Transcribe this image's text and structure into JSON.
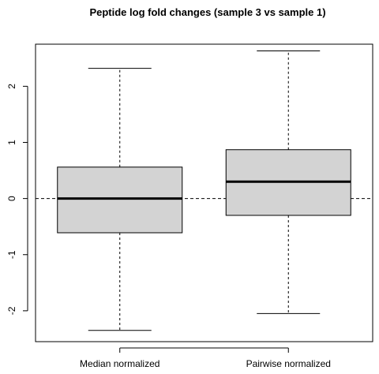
{
  "chart_data": {
    "type": "boxplot",
    "title": "Peptide log fold changes (sample 3 vs sample 1)",
    "xlabel": "",
    "ylabel": "",
    "categories": [
      "Median normalized",
      "Pairwise normalized"
    ],
    "boxes": [
      {
        "category": "Median normalized",
        "whisker_low": -2.35,
        "q1": -0.61,
        "median": 0.0,
        "q3": 0.56,
        "whisker_high": 2.32
      },
      {
        "category": "Pairwise normalized",
        "whisker_low": -2.05,
        "q1": -0.3,
        "median": 0.3,
        "q3": 0.87,
        "whisker_high": 2.63
      }
    ],
    "y_ticks": [
      "-2",
      "-1",
      "0",
      "1",
      "2"
    ],
    "y_tick_values": [
      -2,
      -1,
      0,
      1,
      2
    ],
    "ylim": [
      -2.55,
      2.75
    ],
    "reference_line": 0,
    "box_fill": "#d3d3d3",
    "line_color": "#000000",
    "grid": false,
    "legend": "none"
  }
}
